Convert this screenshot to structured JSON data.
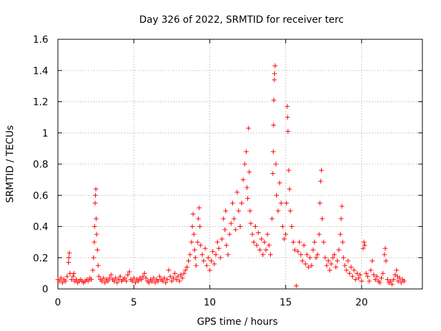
{
  "chart_data": {
    "type": "scatter",
    "title": "Day 326 of 2022, SRMTID for receiver terc",
    "xlabel": "GPS time / hours",
    "ylabel": "SRMTID / TECUs",
    "xlim": [
      0,
      24
    ],
    "ylim": [
      0,
      1.6
    ],
    "x_ticks": [
      0,
      5,
      10,
      15,
      20
    ],
    "x_tick_labels": [
      "0",
      "5",
      "10",
      "15",
      "20"
    ],
    "y_ticks": [
      0,
      0.2,
      0.4,
      0.6,
      0.8,
      1.0,
      1.2,
      1.4,
      1.6
    ],
    "y_tick_labels": [
      "0",
      "0.2",
      "0.4",
      "0.6",
      "0.8",
      "1",
      "1.2",
      "1.4",
      "1.6"
    ],
    "grid": true,
    "marker": "+",
    "color": "#ff0000",
    "series": [
      {
        "name": "terc",
        "points": [
          [
            0.0,
            0.06
          ],
          [
            0.1,
            0.05
          ],
          [
            0.2,
            0.07
          ],
          [
            0.3,
            0.04
          ],
          [
            0.4,
            0.06
          ],
          [
            0.5,
            0.05
          ],
          [
            0.6,
            0.08
          ],
          [
            0.7,
            0.17
          ],
          [
            0.72,
            0.2
          ],
          [
            0.75,
            0.23
          ],
          [
            0.8,
            0.1
          ],
          [
            0.9,
            0.06
          ],
          [
            1.0,
            0.08
          ],
          [
            1.05,
            0.1
          ],
          [
            1.1,
            0.05
          ],
          [
            1.2,
            0.06
          ],
          [
            1.3,
            0.04
          ],
          [
            1.4,
            0.05
          ],
          [
            1.5,
            0.06
          ],
          [
            1.6,
            0.05
          ],
          [
            1.7,
            0.04
          ],
          [
            1.8,
            0.05
          ],
          [
            1.9,
            0.06
          ],
          [
            2.0,
            0.05
          ],
          [
            2.1,
            0.07
          ],
          [
            2.2,
            0.06
          ],
          [
            2.3,
            0.12
          ],
          [
            2.35,
            0.2
          ],
          [
            2.4,
            0.3
          ],
          [
            2.42,
            0.4
          ],
          [
            2.45,
            0.55
          ],
          [
            2.47,
            0.6
          ],
          [
            2.5,
            0.64
          ],
          [
            2.52,
            0.45
          ],
          [
            2.55,
            0.35
          ],
          [
            2.6,
            0.25
          ],
          [
            2.65,
            0.15
          ],
          [
            2.7,
            0.08
          ],
          [
            2.8,
            0.06
          ],
          [
            2.9,
            0.05
          ],
          [
            3.0,
            0.07
          ],
          [
            3.1,
            0.04
          ],
          [
            3.2,
            0.06
          ],
          [
            3.3,
            0.05
          ],
          [
            3.4,
            0.07
          ],
          [
            3.5,
            0.09
          ],
          [
            3.6,
            0.06
          ],
          [
            3.7,
            0.05
          ],
          [
            3.8,
            0.07
          ],
          [
            3.9,
            0.04
          ],
          [
            4.0,
            0.06
          ],
          [
            4.1,
            0.08
          ],
          [
            4.2,
            0.05
          ],
          [
            4.3,
            0.06
          ],
          [
            4.4,
            0.07
          ],
          [
            4.5,
            0.05
          ],
          [
            4.6,
            0.09
          ],
          [
            4.7,
            0.11
          ],
          [
            4.8,
            0.06
          ],
          [
            4.9,
            0.05
          ],
          [
            5.0,
            0.07
          ],
          [
            5.1,
            0.04
          ],
          [
            5.2,
            0.06
          ],
          [
            5.3,
            0.05
          ],
          [
            5.4,
            0.07
          ],
          [
            5.5,
            0.06
          ],
          [
            5.6,
            0.08
          ],
          [
            5.7,
            0.1
          ],
          [
            5.8,
            0.07
          ],
          [
            5.9,
            0.05
          ],
          [
            6.0,
            0.04
          ],
          [
            6.1,
            0.06
          ],
          [
            6.2,
            0.05
          ],
          [
            6.3,
            0.07
          ],
          [
            6.4,
            0.04
          ],
          [
            6.5,
            0.06
          ],
          [
            6.6,
            0.05
          ],
          [
            6.7,
            0.08
          ],
          [
            6.8,
            0.06
          ],
          [
            6.9,
            0.05
          ],
          [
            7.0,
            0.07
          ],
          [
            7.1,
            0.04
          ],
          [
            7.2,
            0.06
          ],
          [
            7.3,
            0.12
          ],
          [
            7.4,
            0.08
          ],
          [
            7.5,
            0.05
          ],
          [
            7.6,
            0.07
          ],
          [
            7.7,
            0.1
          ],
          [
            7.8,
            0.06
          ],
          [
            7.9,
            0.08
          ],
          [
            8.0,
            0.05
          ],
          [
            8.1,
            0.09
          ],
          [
            8.2,
            0.07
          ],
          [
            8.3,
            0.1
          ],
          [
            8.4,
            0.12
          ],
          [
            8.5,
            0.14
          ],
          [
            8.6,
            0.18
          ],
          [
            8.7,
            0.22
          ],
          [
            8.8,
            0.3
          ],
          [
            8.85,
            0.4
          ],
          [
            8.9,
            0.48
          ],
          [
            8.95,
            0.35
          ],
          [
            9.0,
            0.25
          ],
          [
            9.05,
            0.2
          ],
          [
            9.1,
            0.15
          ],
          [
            9.2,
            0.3
          ],
          [
            9.25,
            0.45
          ],
          [
            9.3,
            0.52
          ],
          [
            9.35,
            0.4
          ],
          [
            9.4,
            0.28
          ],
          [
            9.5,
            0.22
          ],
          [
            9.6,
            0.18
          ],
          [
            9.7,
            0.26
          ],
          [
            9.8,
            0.15
          ],
          [
            9.9,
            0.2
          ],
          [
            10.0,
            0.12
          ],
          [
            10.1,
            0.18
          ],
          [
            10.2,
            0.24
          ],
          [
            10.3,
            0.16
          ],
          [
            10.4,
            0.22
          ],
          [
            10.5,
            0.3
          ],
          [
            10.6,
            0.26
          ],
          [
            10.7,
            0.2
          ],
          [
            10.8,
            0.32
          ],
          [
            10.9,
            0.45
          ],
          [
            11.0,
            0.38
          ],
          [
            11.05,
            0.5
          ],
          [
            11.1,
            0.28
          ],
          [
            11.2,
            0.22
          ],
          [
            11.3,
            0.35
          ],
          [
            11.4,
            0.42
          ],
          [
            11.5,
            0.55
          ],
          [
            11.6,
            0.45
          ],
          [
            11.7,
            0.38
          ],
          [
            11.8,
            0.62
          ],
          [
            11.9,
            0.5
          ],
          [
            12.0,
            0.4
          ],
          [
            12.1,
            0.55
          ],
          [
            12.2,
            0.7
          ],
          [
            12.3,
            0.8
          ],
          [
            12.4,
            0.88
          ],
          [
            12.45,
            0.65
          ],
          [
            12.5,
            0.58
          ],
          [
            12.55,
            1.03
          ],
          [
            12.6,
            0.75
          ],
          [
            12.65,
            0.5
          ],
          [
            12.7,
            0.42
          ],
          [
            12.8,
            0.35
          ],
          [
            12.9,
            0.3
          ],
          [
            13.0,
            0.4
          ],
          [
            13.1,
            0.28
          ],
          [
            13.2,
            0.36
          ],
          [
            13.3,
            0.25
          ],
          [
            13.4,
            0.32
          ],
          [
            13.5,
            0.22
          ],
          [
            13.6,
            0.3
          ],
          [
            13.7,
            0.25
          ],
          [
            13.8,
            0.35
          ],
          [
            13.9,
            0.28
          ],
          [
            14.0,
            0.22
          ],
          [
            14.1,
            0.45
          ],
          [
            14.15,
            0.74
          ],
          [
            14.18,
            0.88
          ],
          [
            14.2,
            1.05
          ],
          [
            14.22,
            1.21
          ],
          [
            14.25,
            1.34
          ],
          [
            14.27,
            1.38
          ],
          [
            14.3,
            1.43
          ],
          [
            14.35,
            0.8
          ],
          [
            14.4,
            0.6
          ],
          [
            14.5,
            0.5
          ],
          [
            14.6,
            0.68
          ],
          [
            14.7,
            0.55
          ],
          [
            14.8,
            0.4
          ],
          [
            14.9,
            0.32
          ],
          [
            15.0,
            0.35
          ],
          [
            15.05,
            0.55
          ],
          [
            15.1,
            1.17
          ],
          [
            15.12,
            1.1
          ],
          [
            15.15,
            1.01
          ],
          [
            15.2,
            0.76
          ],
          [
            15.25,
            0.64
          ],
          [
            15.3,
            0.5
          ],
          [
            15.4,
            0.4
          ],
          [
            15.5,
            0.3
          ],
          [
            15.6,
            0.25
          ],
          [
            15.7,
            0.02
          ],
          [
            15.8,
            0.24
          ],
          [
            15.9,
            0.3
          ],
          [
            16.0,
            0.22
          ],
          [
            16.1,
            0.18
          ],
          [
            16.2,
            0.28
          ],
          [
            16.3,
            0.16
          ],
          [
            16.4,
            0.22
          ],
          [
            16.5,
            0.14
          ],
          [
            16.6,
            0.2
          ],
          [
            16.7,
            0.15
          ],
          [
            16.8,
            0.25
          ],
          [
            16.9,
            0.3
          ],
          [
            17.0,
            0.2
          ],
          [
            17.1,
            0.22
          ],
          [
            17.2,
            0.35
          ],
          [
            17.25,
            0.55
          ],
          [
            17.3,
            0.69
          ],
          [
            17.35,
            0.76
          ],
          [
            17.4,
            0.45
          ],
          [
            17.5,
            0.3
          ],
          [
            17.6,
            0.2
          ],
          [
            17.7,
            0.15
          ],
          [
            17.8,
            0.18
          ],
          [
            17.9,
            0.12
          ],
          [
            18.0,
            0.16
          ],
          [
            18.1,
            0.2
          ],
          [
            18.2,
            0.22
          ],
          [
            18.3,
            0.14
          ],
          [
            18.4,
            0.18
          ],
          [
            18.5,
            0.25
          ],
          [
            18.6,
            0.35
          ],
          [
            18.65,
            0.45
          ],
          [
            18.7,
            0.53
          ],
          [
            18.75,
            0.3
          ],
          [
            18.8,
            0.2
          ],
          [
            18.9,
            0.15
          ],
          [
            19.0,
            0.12
          ],
          [
            19.1,
            0.18
          ],
          [
            19.2,
            0.1
          ],
          [
            19.3,
            0.14
          ],
          [
            19.4,
            0.08
          ],
          [
            19.5,
            0.12
          ],
          [
            19.6,
            0.06
          ],
          [
            19.7,
            0.1
          ],
          [
            19.8,
            0.07
          ],
          [
            19.9,
            0.09
          ],
          [
            20.0,
            0.05
          ],
          [
            20.1,
            0.26
          ],
          [
            20.15,
            0.3
          ],
          [
            20.2,
            0.28
          ],
          [
            20.3,
            0.1
          ],
          [
            20.4,
            0.08
          ],
          [
            20.5,
            0.05
          ],
          [
            20.6,
            0.12
          ],
          [
            20.7,
            0.18
          ],
          [
            20.8,
            0.09
          ],
          [
            20.9,
            0.06
          ],
          [
            21.0,
            0.08
          ],
          [
            21.1,
            0.05
          ],
          [
            21.2,
            0.04
          ],
          [
            21.3,
            0.07
          ],
          [
            21.4,
            0.1
          ],
          [
            21.5,
            0.22
          ],
          [
            21.55,
            0.26
          ],
          [
            21.6,
            0.18
          ],
          [
            21.7,
            0.06
          ],
          [
            21.8,
            0.04
          ],
          [
            21.9,
            0.05
          ],
          [
            22.0,
            0.03
          ],
          [
            22.1,
            0.06
          ],
          [
            22.2,
            0.09
          ],
          [
            22.3,
            0.12
          ],
          [
            22.35,
            0.08
          ],
          [
            22.4,
            0.05
          ],
          [
            22.5,
            0.07
          ],
          [
            22.6,
            0.04
          ],
          [
            22.7,
            0.06
          ],
          [
            22.8,
            0.05
          ]
        ]
      }
    ]
  }
}
